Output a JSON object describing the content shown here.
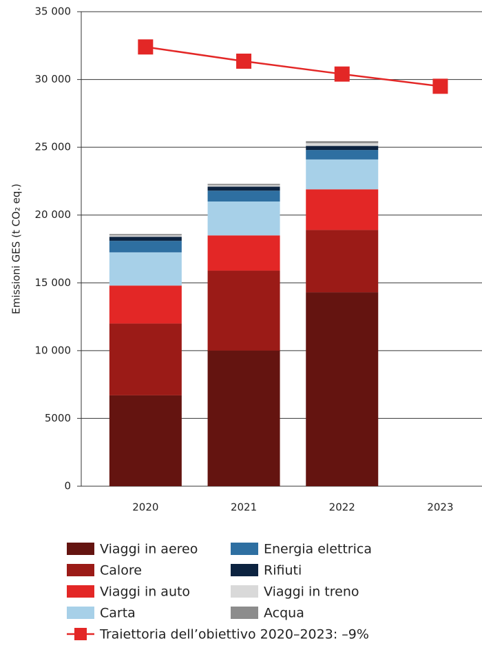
{
  "chart_data": {
    "type": "bar",
    "stacked": true,
    "y_label": "Emissioni GES (t CO₂ eq.)",
    "categories": [
      "2020",
      "2021",
      "2022",
      "2023"
    ],
    "ylim": [
      0,
      35000
    ],
    "yticks": [
      0,
      5000,
      {
        "value": 10000,
        "label": "10 000"
      },
      {
        "value": 15000,
        "label": "15 000"
      },
      {
        "value": 20000,
        "label": "20 000"
      },
      {
        "value": 25000,
        "label": "25 000"
      },
      {
        "value": 30000,
        "label": "30 000"
      },
      {
        "value": 35000,
        "label": "35 000"
      }
    ],
    "grid": true,
    "series": [
      {
        "name": "Viaggi in aereo",
        "color": "#641410",
        "values": [
          6700,
          10000,
          14300,
          null
        ]
      },
      {
        "name": "Calore",
        "color": "#9b1b17",
        "values": [
          5300,
          5900,
          4600,
          null
        ]
      },
      {
        "name": "Viaggi in auto",
        "color": "#e32726",
        "values": [
          2800,
          2600,
          3000,
          null
        ]
      },
      {
        "name": "Carta",
        "color": "#a7d0e8",
        "values": [
          2450,
          2500,
          2200,
          null
        ]
      },
      {
        "name": "Energia elettrica",
        "color": "#2e6fa1",
        "values": [
          850,
          800,
          700,
          null
        ]
      },
      {
        "name": "Rifiuti",
        "color": "#0c2340",
        "values": [
          300,
          300,
          300,
          null
        ]
      },
      {
        "name": "Viaggi in treno",
        "color": "#d9d9d9",
        "values": [
          100,
          100,
          200,
          null
        ]
      },
      {
        "name": "Acqua",
        "color": "#8c8c8c",
        "values": [
          100,
          100,
          150,
          null
        ]
      },
      {
        "name": "Traiettoria dell’obiettivo 2020–2023: –9%",
        "color": "#e32726",
        "type": "line",
        "values": [
          32400,
          31350,
          30400,
          29500
        ]
      }
    ]
  }
}
